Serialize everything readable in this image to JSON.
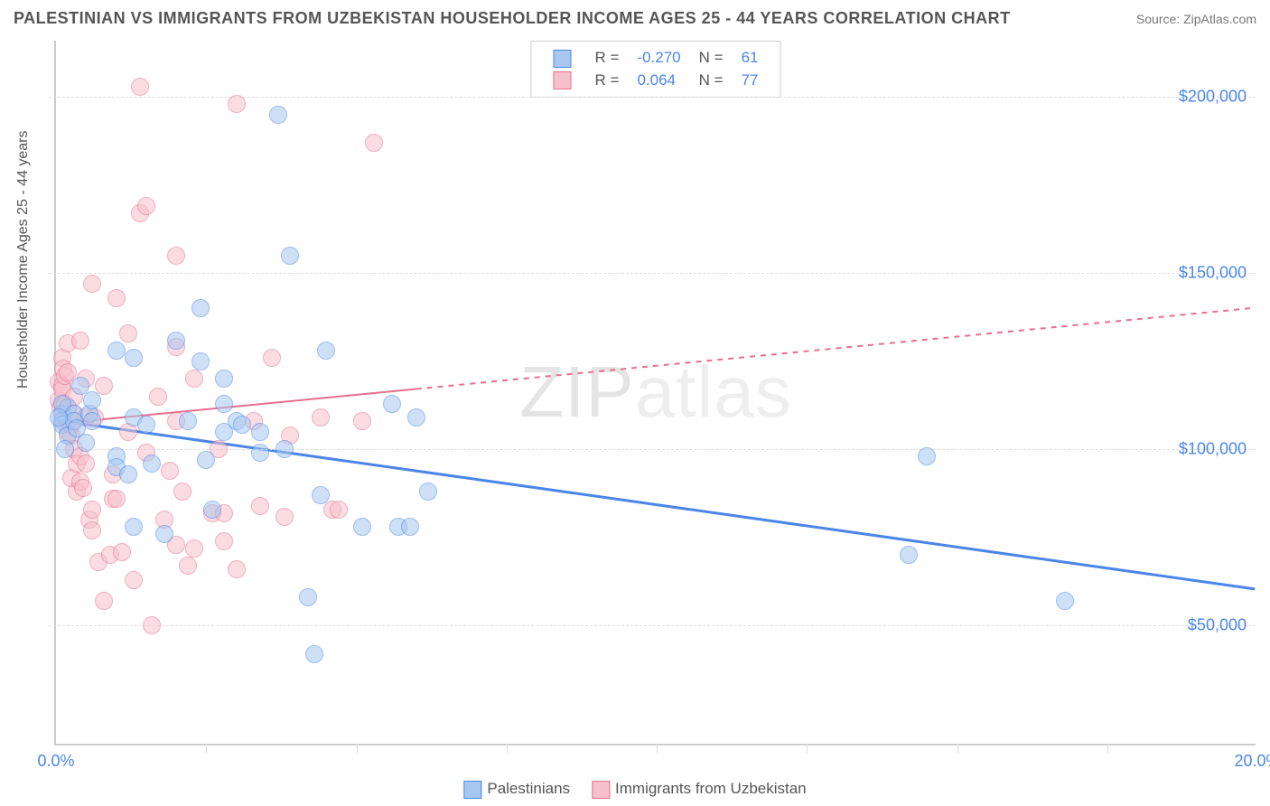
{
  "title": "PALESTINIAN VS IMMIGRANTS FROM UZBEKISTAN HOUSEHOLDER INCOME AGES 25 - 44 YEARS CORRELATION CHART",
  "source": "Source: ZipAtlas.com",
  "watermark": "ZIPatlas",
  "chart": {
    "type": "scatter",
    "xlim": [
      0,
      20
    ],
    "ylim": [
      16000,
      216000
    ],
    "x_ticks_minor_step": 2.5,
    "x_tick_labels": [
      {
        "x": 0,
        "label": "0.0%"
      },
      {
        "x": 20,
        "label": "20.0%"
      }
    ],
    "y_grid": [
      50000,
      100000,
      150000,
      200000
    ],
    "y_tick_labels": [
      {
        "y": 50000,
        "label": "$50,000"
      },
      {
        "y": 100000,
        "label": "$100,000"
      },
      {
        "y": 150000,
        "label": "$150,000"
      },
      {
        "y": 200000,
        "label": "$200,000"
      }
    ],
    "y_axis_label": "Householder Income Ages 25 - 44 years",
    "background_color": "#ffffff",
    "grid_color": "#dddddd",
    "axis_color": "#cccccc",
    "tick_label_color": "#4a86e8",
    "marker_radius": 10,
    "marker_opacity": 0.55,
    "series": [
      {
        "name": "Palestinians",
        "color_fill": "#a7c7f0",
        "color_stroke": "#4a86e8",
        "R": "-0.270",
        "N": "61",
        "regression": {
          "y_at_x0": 108000,
          "y_at_x20": 60000,
          "solid_until_x": 20,
          "line_width": 3
        },
        "points": [
          [
            0.1,
            110000
          ],
          [
            0.1,
            108000
          ],
          [
            0.1,
            107000
          ],
          [
            0.2,
            112000
          ],
          [
            0.2,
            104000
          ],
          [
            0.15,
            100000
          ],
          [
            0.1,
            113000
          ],
          [
            0.3,
            110000
          ],
          [
            0.4,
            118000
          ],
          [
            0.3,
            108000
          ],
          [
            0.35,
            106000
          ],
          [
            0.05,
            109000
          ],
          [
            0.5,
            102000
          ],
          [
            0.55,
            110000
          ],
          [
            0.6,
            108000
          ],
          [
            0.6,
            114000
          ],
          [
            1.0,
            128000
          ],
          [
            1.0,
            98000
          ],
          [
            1.0,
            95000
          ],
          [
            1.2,
            93000
          ],
          [
            1.3,
            78000
          ],
          [
            1.3,
            126000
          ],
          [
            1.3,
            109000
          ],
          [
            1.5,
            107000
          ],
          [
            1.6,
            96000
          ],
          [
            1.8,
            76000
          ],
          [
            2.0,
            131000
          ],
          [
            2.2,
            108000
          ],
          [
            2.4,
            125000
          ],
          [
            2.4,
            140000
          ],
          [
            2.5,
            97000
          ],
          [
            2.6,
            83000
          ],
          [
            2.8,
            105000
          ],
          [
            2.8,
            120000
          ],
          [
            2.8,
            113000
          ],
          [
            3.0,
            108000
          ],
          [
            3.1,
            107000
          ],
          [
            3.4,
            99000
          ],
          [
            3.4,
            105000
          ],
          [
            3.7,
            195000
          ],
          [
            3.8,
            100000
          ],
          [
            3.9,
            155000
          ],
          [
            4.2,
            58000
          ],
          [
            4.3,
            42000
          ],
          [
            4.4,
            87000
          ],
          [
            4.5,
            128000
          ],
          [
            5.1,
            78000
          ],
          [
            5.6,
            113000
          ],
          [
            5.7,
            78000
          ],
          [
            5.9,
            78000
          ],
          [
            6.0,
            109000
          ],
          [
            6.2,
            88000
          ],
          [
            14.5,
            98000
          ],
          [
            14.2,
            70000
          ],
          [
            16.8,
            57000
          ]
        ]
      },
      {
        "name": "Immigrants from Uzbekistan",
        "color_fill": "#f6c0cc",
        "color_stroke": "#e86e8e",
        "R": "0.064",
        "N": "77",
        "regression": {
          "y_at_x0": 107000,
          "y_at_x20": 140000,
          "solid_until_x": 6,
          "line_width": 2
        },
        "points": [
          [
            0.05,
            119000
          ],
          [
            0.05,
            114000
          ],
          [
            0.08,
            112000
          ],
          [
            0.1,
            126000
          ],
          [
            0.1,
            118000
          ],
          [
            0.12,
            123000
          ],
          [
            0.1,
            117000
          ],
          [
            0.15,
            121000
          ],
          [
            0.15,
            113000
          ],
          [
            0.2,
            105000
          ],
          [
            0.2,
            130000
          ],
          [
            0.2,
            122000
          ],
          [
            0.25,
            107000
          ],
          [
            0.25,
            92000
          ],
          [
            0.25,
            104000
          ],
          [
            0.3,
            115000
          ],
          [
            0.3,
            100000
          ],
          [
            0.3,
            110000
          ],
          [
            0.35,
            88000
          ],
          [
            0.35,
            96000
          ],
          [
            0.4,
            98000
          ],
          [
            0.4,
            91000
          ],
          [
            0.4,
            131000
          ],
          [
            0.45,
            89000
          ],
          [
            0.5,
            96000
          ],
          [
            0.5,
            109000
          ],
          [
            0.5,
            120000
          ],
          [
            0.55,
            80000
          ],
          [
            0.6,
            83000
          ],
          [
            0.6,
            77000
          ],
          [
            0.6,
            147000
          ],
          [
            0.65,
            109000
          ],
          [
            0.7,
            68000
          ],
          [
            0.8,
            57000
          ],
          [
            0.8,
            118000
          ],
          [
            0.9,
            70000
          ],
          [
            0.95,
            93000
          ],
          [
            0.95,
            86000
          ],
          [
            1.0,
            86000
          ],
          [
            1.0,
            143000
          ],
          [
            1.1,
            71000
          ],
          [
            1.2,
            133000
          ],
          [
            1.2,
            105000
          ],
          [
            1.3,
            63000
          ],
          [
            1.4,
            203000
          ],
          [
            1.4,
            167000
          ],
          [
            1.5,
            169000
          ],
          [
            1.5,
            99000
          ],
          [
            1.6,
            50000
          ],
          [
            1.7,
            115000
          ],
          [
            1.8,
            80000
          ],
          [
            1.9,
            94000
          ],
          [
            2.0,
            73000
          ],
          [
            2.0,
            129000
          ],
          [
            2.0,
            108000
          ],
          [
            2.0,
            155000
          ],
          [
            2.1,
            88000
          ],
          [
            2.2,
            67000
          ],
          [
            2.3,
            72000
          ],
          [
            2.3,
            120000
          ],
          [
            2.6,
            82000
          ],
          [
            2.7,
            100000
          ],
          [
            2.8,
            74000
          ],
          [
            2.8,
            82000
          ],
          [
            3.0,
            198000
          ],
          [
            3.0,
            66000
          ],
          [
            3.3,
            108000
          ],
          [
            3.4,
            84000
          ],
          [
            3.6,
            126000
          ],
          [
            3.8,
            81000
          ],
          [
            3.9,
            104000
          ],
          [
            4.4,
            109000
          ],
          [
            4.6,
            83000
          ],
          [
            4.7,
            83000
          ],
          [
            5.1,
            108000
          ],
          [
            5.3,
            187000
          ]
        ]
      }
    ]
  },
  "legend_bottom": [
    {
      "swatch_fill": "#a7c7f0",
      "swatch_stroke": "#4a86e8",
      "label": "Palestinians"
    },
    {
      "swatch_fill": "#f6c0cc",
      "swatch_stroke": "#e86e8e",
      "label": "Immigrants from Uzbekistan"
    }
  ]
}
